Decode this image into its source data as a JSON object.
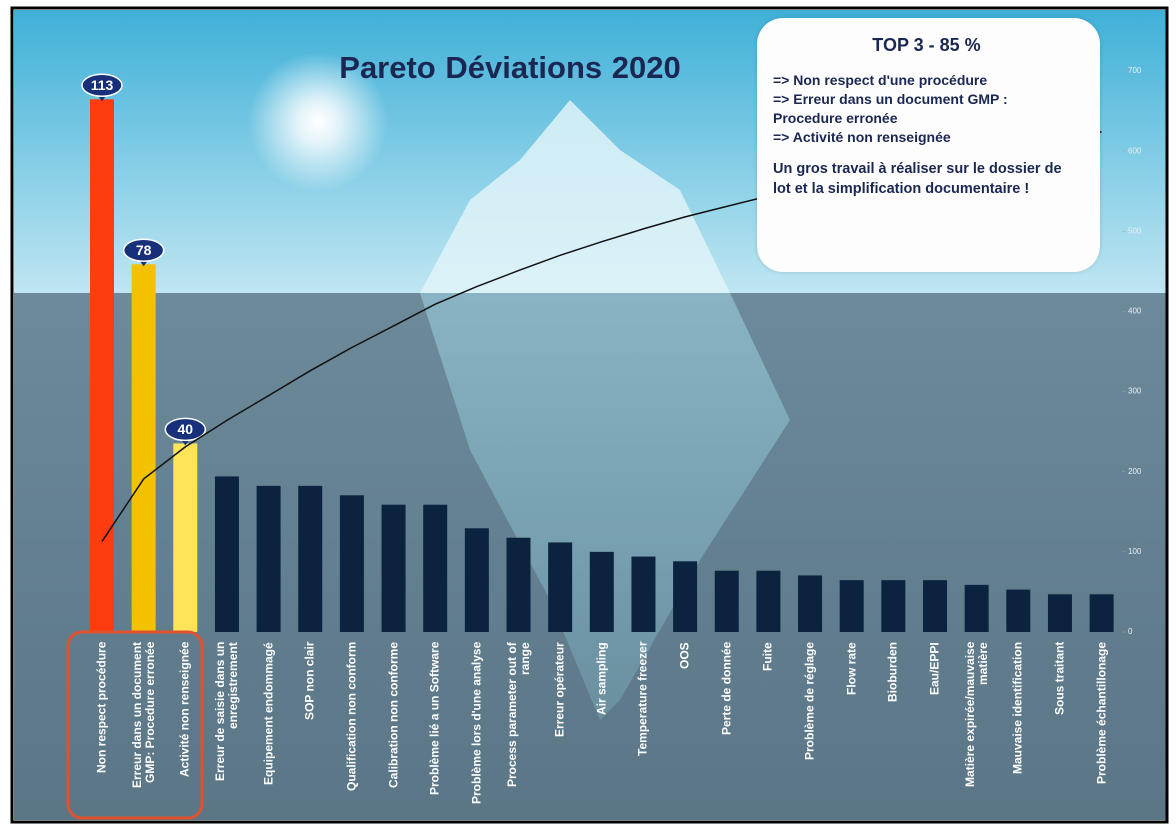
{
  "chart_data": {
    "type": "bar",
    "title": "Pareto Déviations 2020",
    "categories": [
      "Non respect procédure",
      "Erreur dans un document GMP: Procedure erronée",
      "Activité non renseignée",
      "Erreur de saisie dans un enregistrement",
      "Equipement endommagé",
      "SOP non clair",
      "Qualification non conform",
      "Calibration non conforme",
      "Problème lié a un Software",
      "Problème lors d'une analyse",
      "Process parameter out of range",
      "Erreur opérateur",
      "Air sampling",
      "Temperature freezer",
      "OOS",
      "Perte de donnée",
      "Fuite",
      "Problème de réglage",
      "Flow rate",
      "Bioburden",
      "Eau/EPPI",
      "Matière expirée/mauvaise matière",
      "Mauvaise identification",
      "Sous traitant",
      "Problème échantillonage"
    ],
    "values": [
      113,
      78,
      40,
      33,
      31,
      31,
      29,
      27,
      27,
      22,
      20,
      19,
      17,
      16,
      15,
      13,
      13,
      12,
      11,
      11,
      11,
      10,
      9,
      8,
      8
    ],
    "value_labels": [
      "113",
      "78",
      "40",
      null,
      null,
      null,
      null,
      null,
      null,
      null,
      null,
      null,
      null,
      null,
      null,
      null,
      null,
      null,
      null,
      null,
      null,
      null,
      null,
      null,
      null
    ],
    "colors": [
      "#ff3c10",
      "#f2c200",
      "#ffe45a",
      "#0c2340",
      "#0c2340",
      "#0c2340",
      "#0c2340",
      "#0c2340",
      "#0c2340",
      "#0c2340",
      "#0c2340",
      "#0c2340",
      "#0c2340",
      "#0c2340",
      "#0c2340",
      "#0c2340",
      "#0c2340",
      "#0c2340",
      "#0c2340",
      "#0c2340",
      "#0c2340",
      "#0c2340",
      "#0c2340",
      "#0c2340",
      "#0c2340"
    ],
    "ylim": [
      0,
      119
    ],
    "cumulative_line": {
      "color": "#111111",
      "axis": "y2"
    },
    "y2lim": [
      0,
      700
    ],
    "y2ticks": [
      0,
      100,
      200,
      300,
      400,
      500,
      600,
      700
    ],
    "annotation": {
      "title": "TOP 3 - 85 %",
      "lines": [
        "=> Non respect  d'une procédure",
        "=> Erreur dans un document GMP : Procedure erronée",
        "=> Activité non renseignée"
      ],
      "note": "Un gros travail à réaliser sur le dossier de lot et la simplification documentaire !"
    }
  }
}
